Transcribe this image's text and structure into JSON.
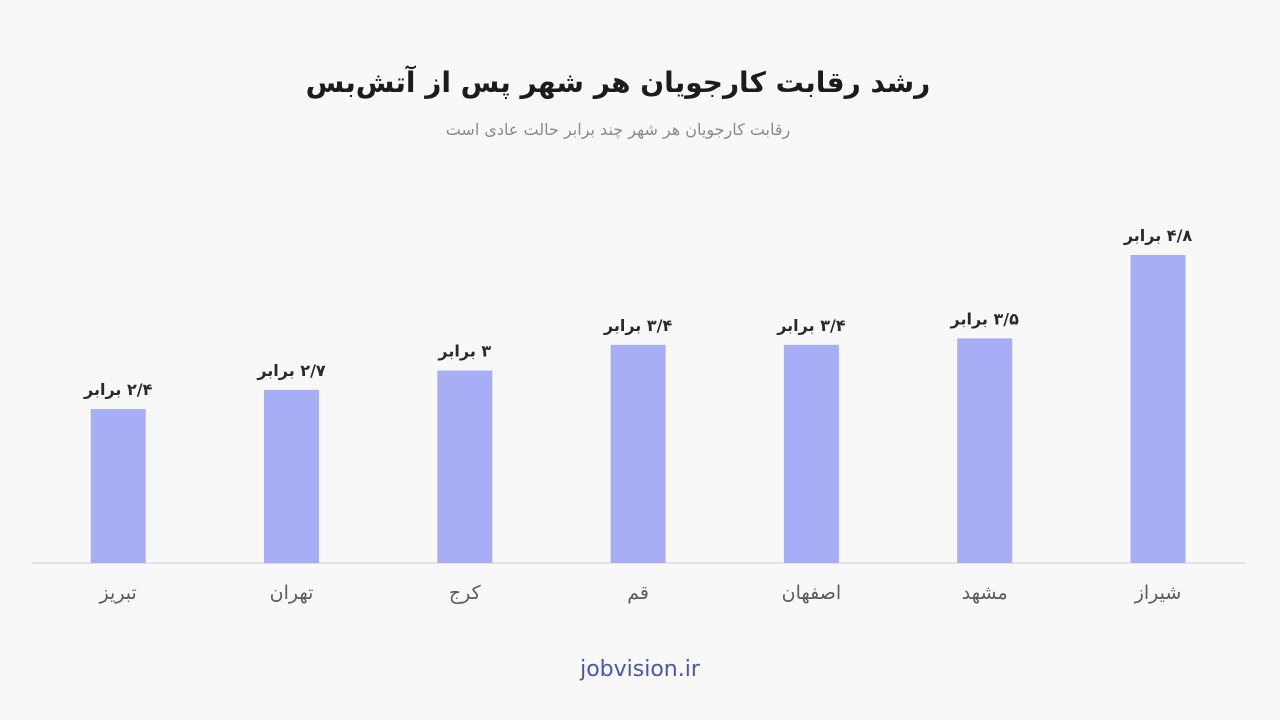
{
  "header": {
    "title": "رشد رقابت کارجویان هر شهر پس از آتش‌بس",
    "subtitle": "رقابت کارجویان هر شهر چند برابر حالت عادی است"
  },
  "footer": {
    "source": "jobvision.ir"
  },
  "colors": {
    "bar": "#a8aef5",
    "footer_text": "#4b56a8"
  },
  "chart_data": {
    "type": "bar",
    "categories": [
      "شیراز",
      "مشهد",
      "اصفهان",
      "قم",
      "کرج",
      "تهران",
      "تبریز"
    ],
    "values": [
      4.8,
      3.5,
      3.4,
      3.4,
      3,
      2.7,
      2.4
    ],
    "value_labels": [
      "۴/۸ برابر",
      "۳/۵ برابر",
      "۳/۴ برابر",
      "۳/۴ برابر",
      "۳ برابر",
      "۲/۷ برابر",
      "۲/۴ برابر"
    ],
    "title": "رشد رقابت کارجویان هر شهر پس از آتش‌بس",
    "subtitle": "رقابت کارجویان هر شهر چند برابر حالت عادی است",
    "ylim": [
      0,
      4.8
    ],
    "grid": false,
    "legend": "none"
  }
}
